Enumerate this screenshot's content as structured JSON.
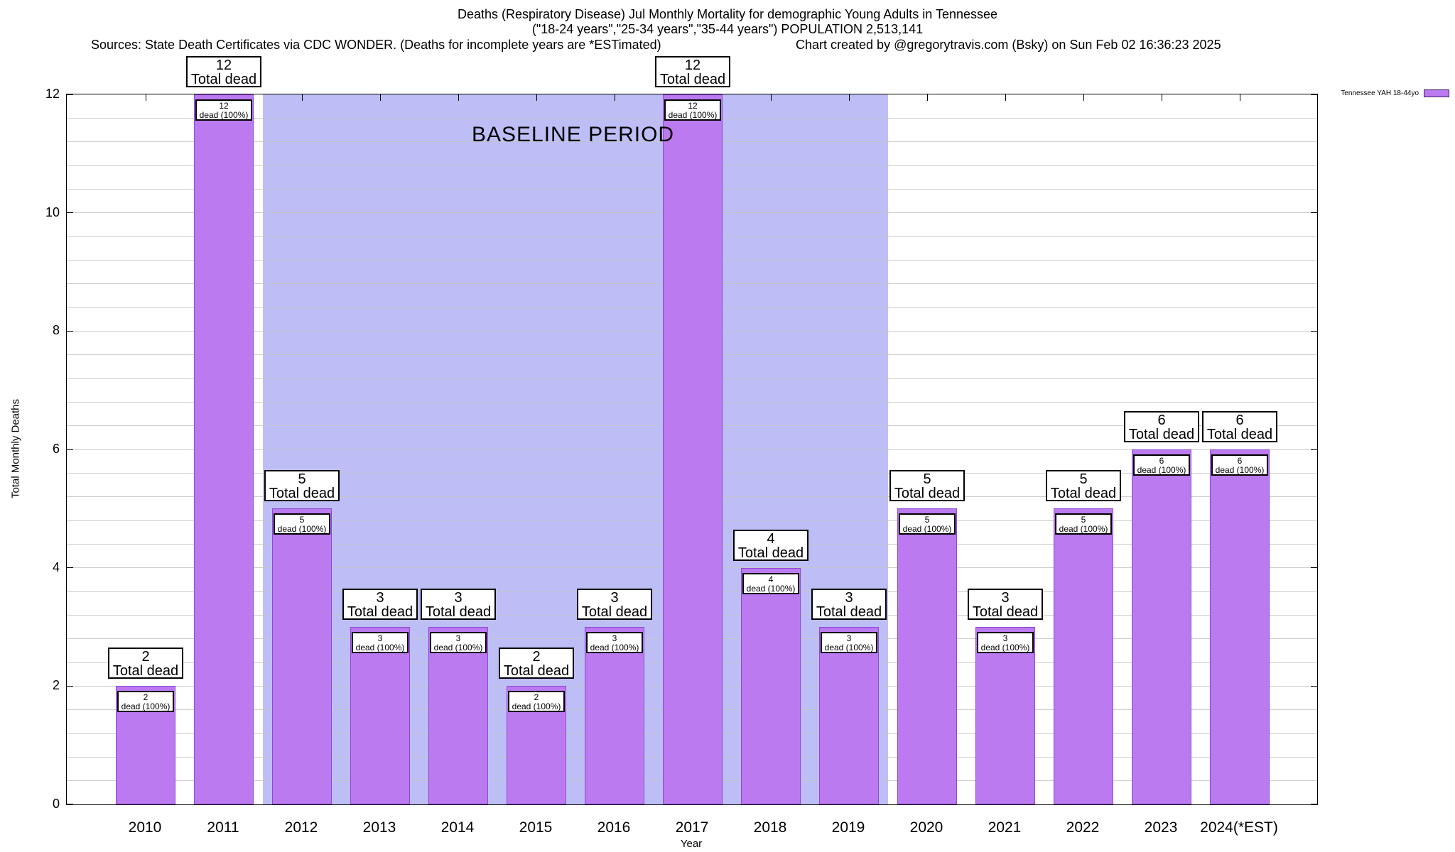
{
  "title": {
    "line1": "Deaths (Respiratory Disease) Jul Monthly Mortality for demographic Young Adults in Tennessee",
    "line2": "(\"18-24 years\",\"25-34 years\",\"35-44 years\") POPULATION 2,513,141",
    "sources": "Sources: State Death Certificates via CDC WONDER. (Deaths for incomplete years are *ESTimated)",
    "credit": "Chart created by @gregorytravis.com (Bsky) on Sun Feb 02 16:36:23 2025"
  },
  "legend": {
    "label": "Tennessee YAH 18-44yo",
    "position": "top-right"
  },
  "colors": {
    "bar_fill": "#bb7af0",
    "bar_border": "#8d48d6",
    "band": "#bebef7",
    "grid": "#c6c6c6",
    "box_border": "#000000",
    "swatch_border": "#3a1a5e"
  },
  "baseline_band": {
    "label": "BASELINE PERIOD",
    "from_year_boundary": 2011.5,
    "to_year_boundary": 2019.5
  },
  "axes": {
    "y_label": "Total Monthly Deaths",
    "x_label": "Year",
    "y_ticks": [
      0,
      2,
      4,
      6,
      8,
      10,
      12
    ],
    "y_minor_step": 0.4,
    "y_max": 12
  },
  "chart_data": {
    "type": "bar",
    "title": "Deaths (Respiratory Disease) Jul Monthly Mortality for demographic Young Adults in Tennessee",
    "subtitle": "(\"18-24 years\",\"25-34 years\",\"35-44 years\") POPULATION 2,513,141",
    "xlabel": "Year",
    "ylabel": "Total Monthly Deaths",
    "ylim": [
      0,
      12
    ],
    "grid": true,
    "legend_position": "top-right",
    "categories": [
      "2010",
      "2011",
      "2012",
      "2013",
      "2014",
      "2015",
      "2016",
      "2017",
      "2018",
      "2019",
      "2020",
      "2021",
      "2022",
      "2023",
      "2024(*EST)"
    ],
    "series": [
      {
        "name": "Tennessee YAH 18-44yo",
        "values": [
          2,
          12,
          5,
          3,
          3,
          2,
          3,
          12,
          4,
          3,
          5,
          3,
          5,
          6,
          6
        ]
      }
    ],
    "bar_labels": {
      "outer_line2": "Total dead",
      "inner_line2": "dead (100%)"
    },
    "baseline_period": {
      "label": "BASELINE PERIOD",
      "from": 2011.5,
      "to": 2019.5
    }
  }
}
